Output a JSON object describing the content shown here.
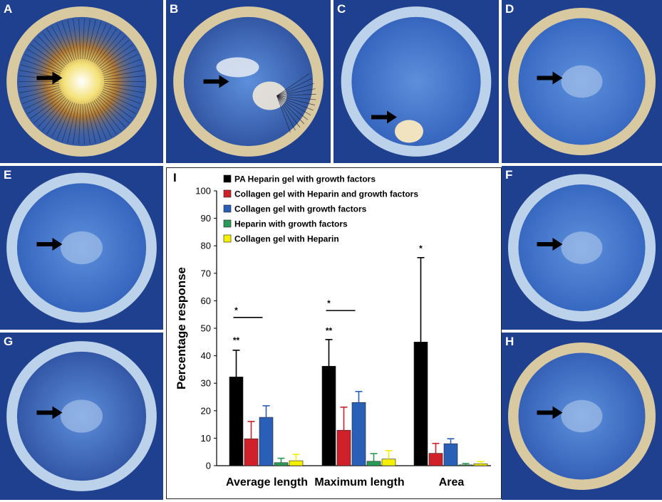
{
  "panels": [
    {
      "id": "A",
      "label": "A",
      "fill": "#2c4f9a",
      "kind": "vascular"
    },
    {
      "id": "B",
      "label": "B",
      "fill": "#2a4c98",
      "kind": "partial"
    },
    {
      "id": "C",
      "label": "C",
      "fill": "#2f5db8",
      "kind": "pellet"
    },
    {
      "id": "D",
      "label": "D",
      "fill": "#3162bd",
      "kind": "faint"
    },
    {
      "id": "E",
      "label": "E",
      "fill": "#2f5db8",
      "kind": "faint"
    },
    {
      "id": "F",
      "label": "F",
      "fill": "#3061bc",
      "kind": "faint"
    },
    {
      "id": "G",
      "label": "G",
      "fill": "#2a4c9c",
      "kind": "faint"
    },
    {
      "id": "H",
      "label": "H",
      "fill": "#2d58b0",
      "kind": "faint"
    }
  ],
  "chart_data": {
    "type": "bar",
    "panel_label": "I",
    "categories": [
      "Average length",
      "Maximum length",
      "Area"
    ],
    "ylabel": "Percentage response",
    "ylim": [
      0,
      100
    ],
    "yticks": [
      0,
      10,
      20,
      30,
      40,
      50,
      60,
      70,
      80,
      90,
      100
    ],
    "legend_position": "top-left",
    "series": [
      {
        "name": "PA Heparin gel with growth factors",
        "color": "#000000",
        "values": [
          32.3,
          36.2,
          45.0
        ],
        "errors": [
          9.7,
          9.7,
          30.7
        ]
      },
      {
        "name": "Collagen gel with Heparin and growth factors",
        "color": "#d0202a",
        "values": [
          9.8,
          12.9,
          4.5
        ],
        "errors": [
          6.3,
          8.4,
          3.6
        ]
      },
      {
        "name": "Collagen gel with growth factors",
        "color": "#2a5fb8",
        "values": [
          17.6,
          23.0,
          8.0
        ],
        "errors": [
          4.2,
          4.0,
          1.8
        ]
      },
      {
        "name": "Heparin with growth factors",
        "color": "#2a9a55",
        "values": [
          1.1,
          1.6,
          0.3
        ],
        "errors": [
          1.6,
          2.8,
          0.5
        ]
      },
      {
        "name": "Collagen gel with Heparin",
        "color": "#f4f000",
        "values": [
          1.8,
          2.4,
          0.7
        ],
        "errors": [
          2.3,
          3.1,
          0.8
        ]
      }
    ],
    "annotations": [
      {
        "text": "**",
        "category": 0,
        "y": 44.5
      },
      {
        "text": "*",
        "category": 0,
        "y": 55.5
      },
      {
        "text": "**",
        "category": 1,
        "y": 48.0
      },
      {
        "text": "*",
        "category": 1,
        "y": 58.0
      },
      {
        "text": "*",
        "category": 2,
        "y": 78.0
      }
    ]
  }
}
